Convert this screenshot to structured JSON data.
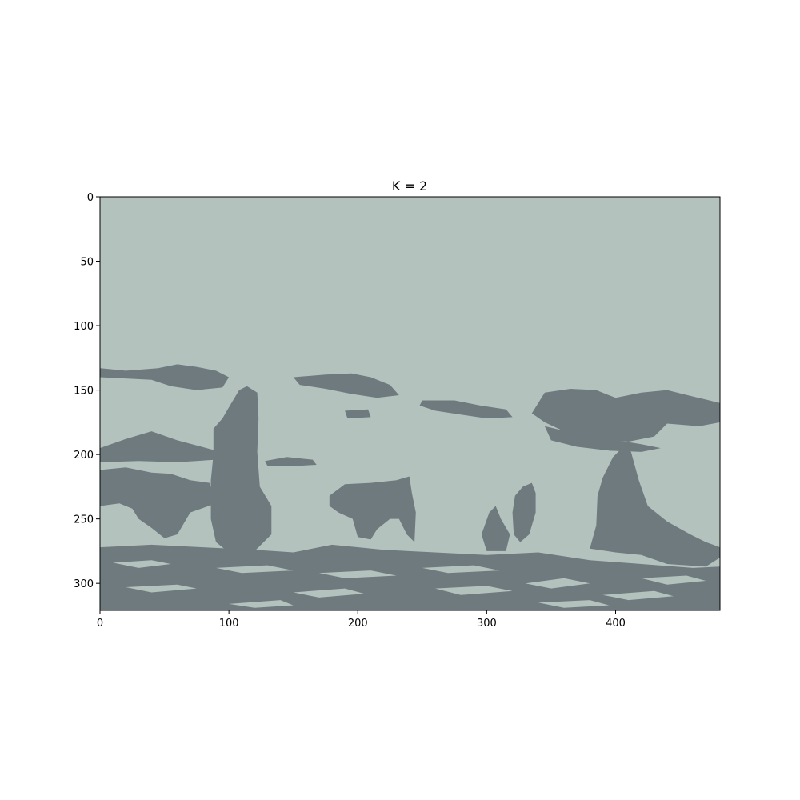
{
  "chart_data": {
    "type": "heatmap",
    "title": "K = 2",
    "xlabel": "",
    "ylabel": "",
    "image_width": 481,
    "image_height": 321,
    "xlim": [
      0,
      481
    ],
    "ylim": [
      321,
      0
    ],
    "y_axis_inverted": true,
    "grid": false,
    "legend": "none",
    "x_ticks": [
      0,
      100,
      200,
      300,
      400
    ],
    "y_ticks": [
      0,
      50,
      100,
      150,
      200,
      250,
      300
    ],
    "x_tick_labels": [
      "0",
      "100",
      "200",
      "300",
      "400"
    ],
    "y_tick_labels": [
      "0",
      "50",
      "100",
      "150",
      "200",
      "250",
      "300"
    ],
    "clusters": [
      {
        "label": "light",
        "color": "#b4c2bd"
      },
      {
        "label": "dark",
        "color": "#6f7a7f"
      }
    ],
    "dark_cluster_regions": [
      {
        "name": "left-clouds",
        "points": [
          [
            0,
            133
          ],
          [
            20,
            135
          ],
          [
            45,
            133
          ],
          [
            60,
            130
          ],
          [
            75,
            132
          ],
          [
            90,
            135
          ],
          [
            100,
            140
          ],
          [
            95,
            148
          ],
          [
            75,
            150
          ],
          [
            55,
            147
          ],
          [
            40,
            142
          ],
          [
            20,
            141
          ],
          [
            0,
            140
          ]
        ]
      },
      {
        "name": "mid-cloud",
        "points": [
          [
            150,
            140
          ],
          [
            175,
            138
          ],
          [
            195,
            137
          ],
          [
            210,
            140
          ],
          [
            225,
            146
          ],
          [
            232,
            154
          ],
          [
            215,
            156
          ],
          [
            195,
            153
          ],
          [
            175,
            149
          ],
          [
            155,
            146
          ]
        ]
      },
      {
        "name": "mid-cloud-small",
        "points": [
          [
            190,
            166
          ],
          [
            208,
            165
          ],
          [
            210,
            171
          ],
          [
            192,
            172
          ]
        ]
      },
      {
        "name": "center-streak",
        "points": [
          [
            250,
            158
          ],
          [
            275,
            158
          ],
          [
            295,
            162
          ],
          [
            315,
            165
          ],
          [
            320,
            171
          ],
          [
            300,
            172
          ],
          [
            280,
            169
          ],
          [
            260,
            166
          ],
          [
            248,
            162
          ]
        ]
      },
      {
        "name": "right-clouds-upper",
        "points": [
          [
            345,
            152
          ],
          [
            365,
            149
          ],
          [
            385,
            150
          ],
          [
            400,
            156
          ],
          [
            420,
            152
          ],
          [
            440,
            150
          ],
          [
            460,
            155
          ],
          [
            481,
            160
          ],
          [
            481,
            175
          ],
          [
            465,
            178
          ],
          [
            440,
            176
          ],
          [
            430,
            186
          ],
          [
            410,
            190
          ],
          [
            385,
            188
          ],
          [
            360,
            182
          ],
          [
            345,
            175
          ],
          [
            335,
            168
          ]
        ]
      },
      {
        "name": "right-clouds-lower",
        "points": [
          [
            345,
            178
          ],
          [
            370,
            184
          ],
          [
            395,
            188
          ],
          [
            420,
            192
          ],
          [
            435,
            195
          ],
          [
            420,
            198
          ],
          [
            395,
            197
          ],
          [
            370,
            194
          ],
          [
            350,
            189
          ]
        ]
      },
      {
        "name": "left-horizon-band",
        "points": [
          [
            0,
            195
          ],
          [
            20,
            188
          ],
          [
            40,
            182
          ],
          [
            60,
            189
          ],
          [
            90,
            197
          ],
          [
            90,
            204
          ],
          [
            60,
            206
          ],
          [
            30,
            205
          ],
          [
            0,
            206
          ]
        ]
      },
      {
        "name": "left-rocks",
        "points": [
          [
            0,
            212
          ],
          [
            20,
            210
          ],
          [
            40,
            214
          ],
          [
            55,
            215
          ],
          [
            70,
            220
          ],
          [
            85,
            222
          ],
          [
            90,
            238
          ],
          [
            70,
            245
          ],
          [
            60,
            262
          ],
          [
            50,
            265
          ],
          [
            40,
            257
          ],
          [
            30,
            250
          ],
          [
            25,
            242
          ],
          [
            15,
            238
          ],
          [
            0,
            240
          ]
        ]
      },
      {
        "name": "tall-stack",
        "points": [
          [
            88,
            180
          ],
          [
            95,
            172
          ],
          [
            102,
            160
          ],
          [
            108,
            150
          ],
          [
            114,
            147
          ],
          [
            122,
            152
          ],
          [
            123,
            172
          ],
          [
            122,
            198
          ],
          [
            124,
            225
          ],
          [
            133,
            240
          ],
          [
            133,
            262
          ],
          [
            120,
            275
          ],
          [
            100,
            276
          ],
          [
            90,
            268
          ],
          [
            86,
            250
          ],
          [
            86,
            220
          ],
          [
            88,
            200
          ]
        ]
      },
      {
        "name": "mid-horizon-dash",
        "points": [
          [
            128,
            205
          ],
          [
            145,
            202
          ],
          [
            165,
            204
          ],
          [
            168,
            208
          ],
          [
            150,
            209
          ],
          [
            130,
            209
          ]
        ]
      },
      {
        "name": "center-rock",
        "points": [
          [
            178,
            232
          ],
          [
            190,
            223
          ],
          [
            210,
            222
          ],
          [
            230,
            220
          ],
          [
            240,
            217
          ],
          [
            242,
            230
          ],
          [
            245,
            245
          ],
          [
            244,
            268
          ],
          [
            238,
            262
          ],
          [
            232,
            250
          ],
          [
            225,
            250
          ],
          [
            215,
            258
          ],
          [
            210,
            266
          ],
          [
            200,
            264
          ],
          [
            196,
            250
          ],
          [
            185,
            245
          ],
          [
            178,
            240
          ]
        ]
      },
      {
        "name": "small-stack-1",
        "points": [
          [
            296,
            262
          ],
          [
            302,
            245
          ],
          [
            307,
            240
          ],
          [
            311,
            250
          ],
          [
            318,
            262
          ],
          [
            315,
            275
          ],
          [
            300,
            275
          ]
        ]
      },
      {
        "name": "small-stack-2",
        "points": [
          [
            320,
            245
          ],
          [
            322,
            232
          ],
          [
            328,
            225
          ],
          [
            335,
            222
          ],
          [
            338,
            230
          ],
          [
            338,
            245
          ],
          [
            333,
            262
          ],
          [
            326,
            268
          ],
          [
            321,
            262
          ]
        ]
      },
      {
        "name": "right-stack",
        "points": [
          [
            386,
            232
          ],
          [
            390,
            218
          ],
          [
            398,
            202
          ],
          [
            405,
            195
          ],
          [
            412,
            198
          ],
          [
            418,
            220
          ],
          [
            425,
            240
          ],
          [
            440,
            252
          ],
          [
            458,
            262
          ],
          [
            470,
            268
          ],
          [
            481,
            272
          ],
          [
            481,
            280
          ],
          [
            470,
            287
          ],
          [
            440,
            285
          ],
          [
            420,
            278
          ],
          [
            400,
            276
          ],
          [
            380,
            273
          ],
          [
            385,
            255
          ]
        ]
      },
      {
        "name": "foreground-band",
        "points": [
          [
            0,
            272
          ],
          [
            40,
            270
          ],
          [
            80,
            272
          ],
          [
            120,
            274
          ],
          [
            150,
            276
          ],
          [
            180,
            270
          ],
          [
            220,
            274
          ],
          [
            260,
            276
          ],
          [
            300,
            278
          ],
          [
            340,
            276
          ],
          [
            380,
            282
          ],
          [
            420,
            285
          ],
          [
            460,
            288
          ],
          [
            481,
            287
          ],
          [
            481,
            321
          ],
          [
            0,
            321
          ]
        ]
      }
    ],
    "light_cluster_gaps": [
      {
        "name": "gap-1",
        "points": [
          [
            10,
            284
          ],
          [
            40,
            282
          ],
          [
            55,
            285
          ],
          [
            30,
            288
          ]
        ]
      },
      {
        "name": "gap-2",
        "points": [
          [
            90,
            288
          ],
          [
            130,
            286
          ],
          [
            150,
            290
          ],
          [
            110,
            292
          ]
        ]
      },
      {
        "name": "gap-3",
        "points": [
          [
            170,
            292
          ],
          [
            210,
            290
          ],
          [
            230,
            294
          ],
          [
            190,
            296
          ]
        ]
      },
      {
        "name": "gap-4",
        "points": [
          [
            250,
            288
          ],
          [
            290,
            286
          ],
          [
            310,
            290
          ],
          [
            270,
            292
          ]
        ]
      },
      {
        "name": "gap-5",
        "points": [
          [
            330,
            300
          ],
          [
            360,
            296
          ],
          [
            380,
            300
          ],
          [
            350,
            304
          ]
        ]
      },
      {
        "name": "gap-6",
        "points": [
          [
            420,
            296
          ],
          [
            455,
            294
          ],
          [
            470,
            298
          ],
          [
            440,
            301
          ]
        ]
      },
      {
        "name": "gap-7",
        "points": [
          [
            20,
            303
          ],
          [
            60,
            301
          ],
          [
            75,
            304
          ],
          [
            40,
            307
          ]
        ]
      },
      {
        "name": "gap-8",
        "points": [
          [
            150,
            307
          ],
          [
            190,
            304
          ],
          [
            205,
            308
          ],
          [
            170,
            311
          ]
        ]
      },
      {
        "name": "gap-9",
        "points": [
          [
            260,
            304
          ],
          [
            300,
            302
          ],
          [
            320,
            306
          ],
          [
            280,
            309
          ]
        ]
      },
      {
        "name": "gap-10",
        "points": [
          [
            390,
            309
          ],
          [
            430,
            306
          ],
          [
            445,
            310
          ],
          [
            410,
            313
          ]
        ]
      },
      {
        "name": "gap-11",
        "points": [
          [
            100,
            316
          ],
          [
            140,
            313
          ],
          [
            150,
            317
          ],
          [
            120,
            319
          ]
        ]
      },
      {
        "name": "gap-12",
        "points": [
          [
            340,
            315
          ],
          [
            380,
            313
          ],
          [
            395,
            317
          ],
          [
            360,
            319
          ]
        ]
      }
    ]
  }
}
